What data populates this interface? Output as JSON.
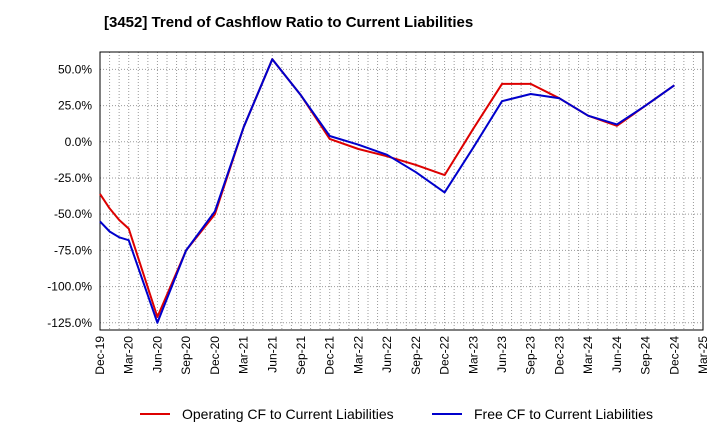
{
  "chart_data": {
    "type": "line",
    "title": "[3452]  Trend of Cashflow Ratio to Current Liabilities",
    "xlabel": "",
    "ylabel": "",
    "categories": [
      "Dec-19",
      "Mar-20",
      "Jun-20",
      "Sep-20",
      "Dec-20",
      "Mar-21",
      "Jun-21",
      "Sep-21",
      "Dec-21",
      "Mar-22",
      "Jun-22",
      "Sep-22",
      "Dec-22",
      "Mar-23",
      "Jun-23",
      "Sep-23",
      "Dec-23",
      "Mar-24",
      "Jun-24",
      "Sep-24",
      "Dec-24",
      "Mar-25"
    ],
    "x_minor_per_major": 3,
    "ylim": [
      -130,
      62
    ],
    "yticks": [
      50,
      25,
      0,
      -25,
      -50,
      -75,
      -100,
      -125
    ],
    "ytick_labels": [
      "50.0%",
      "25.0%",
      "0.0%",
      "-25.0%",
      "-50.0%",
      "-75.0%",
      "-100.0%",
      "-125.0%"
    ],
    "grid": true,
    "legend_position": "bottom",
    "series": [
      {
        "name": "Operating CF to Current Liabilities",
        "color": "#dd0000",
        "values": [
          [
            0,
            -36
          ],
          [
            0.333,
            -46
          ],
          [
            0.667,
            -54
          ],
          [
            1,
            -60
          ],
          [
            2,
            -121
          ],
          [
            3,
            -75
          ],
          [
            4,
            -50
          ],
          [
            5,
            10
          ],
          [
            6,
            57
          ],
          [
            7,
            32
          ],
          [
            8,
            2
          ],
          [
            9,
            -5
          ],
          [
            10,
            -10
          ],
          [
            11,
            -16
          ],
          [
            12,
            -23
          ],
          [
            13,
            9
          ],
          [
            14,
            40
          ],
          [
            15,
            40
          ],
          [
            16,
            30
          ],
          [
            17,
            18
          ],
          [
            18,
            11
          ],
          [
            19,
            25
          ],
          [
            20,
            39
          ]
        ]
      },
      {
        "name": "Free CF to Current Liabilities",
        "color": "#0000cc",
        "values": [
          [
            0,
            -55
          ],
          [
            0.333,
            -62
          ],
          [
            0.667,
            -66
          ],
          [
            1,
            -68
          ],
          [
            2,
            -125
          ],
          [
            3,
            -75
          ],
          [
            4,
            -48
          ],
          [
            5,
            10
          ],
          [
            6,
            57
          ],
          [
            7,
            32
          ],
          [
            8,
            4
          ],
          [
            9,
            -2
          ],
          [
            10,
            -9
          ],
          [
            11,
            -21
          ],
          [
            12,
            -35
          ],
          [
            13,
            -4
          ],
          [
            14,
            28
          ],
          [
            15,
            33
          ],
          [
            16,
            30
          ],
          [
            17,
            18
          ],
          [
            18,
            12
          ],
          [
            19,
            25
          ],
          [
            20,
            39
          ]
        ]
      }
    ]
  }
}
